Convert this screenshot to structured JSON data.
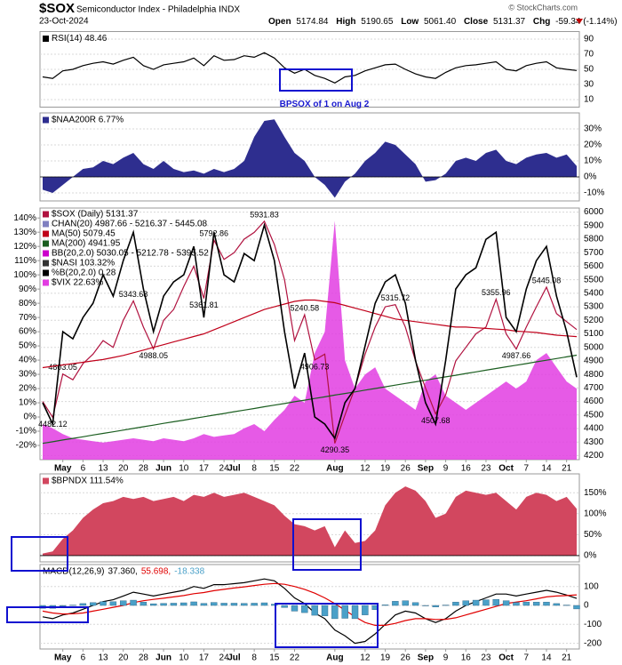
{
  "header": {
    "symbol": "$SOX",
    "name": "Semiconductor Index - Philadelphia INDX",
    "date": "23-Oct-2024",
    "ohlc": [
      {
        "label": "Open",
        "value": "5174.84"
      },
      {
        "label": "High",
        "value": "5190.65"
      },
      {
        "label": "Low",
        "value": "5061.40"
      },
      {
        "label": "Close",
        "value": "5131.37"
      },
      {
        "label": "Chg",
        "value": "-59.34 (-1.14%)"
      }
    ],
    "credit": "© StockCharts.com"
  },
  "chart_data": [
    {
      "type": "line",
      "legend": "row",
      "annotation": "BPSOX of 1 on Aug 2",
      "series": [
        {
          "name": "RSI(14) 48.46",
          "color": "#000000",
          "values": [
            40,
            38,
            48,
            50,
            55,
            58,
            60,
            57,
            62,
            66,
            55,
            50,
            56,
            58,
            60,
            65,
            55,
            68,
            62,
            63,
            68,
            66,
            72,
            65,
            52,
            45,
            50,
            42,
            38,
            32,
            40,
            42,
            48,
            52,
            56,
            57,
            50,
            44,
            40,
            38,
            46,
            52,
            55,
            56,
            58,
            60,
            50,
            48,
            55,
            58,
            60,
            52,
            50,
            48.46
          ]
        }
      ],
      "ylim": [
        0,
        100
      ],
      "yticks": [
        90,
        70,
        50,
        30,
        10
      ],
      "grid": true
    },
    {
      "type": "area",
      "legend": "row",
      "series": [
        {
          "name": "$NAA200R 6.77%",
          "color": "#2e2e8f",
          "values": [
            -8,
            -10,
            -5,
            0,
            5,
            6,
            10,
            8,
            12,
            15,
            8,
            5,
            10,
            5,
            3,
            4,
            2,
            5,
            3,
            5,
            10,
            25,
            35,
            36,
            25,
            15,
            10,
            0,
            -5,
            -13,
            -3,
            2,
            10,
            15,
            22,
            20,
            14,
            8,
            -3,
            -2,
            2,
            10,
            12,
            10,
            15,
            17,
            10,
            8,
            12,
            14,
            15,
            12,
            14,
            6.77
          ]
        }
      ],
      "ylim": [
        -15,
        40
      ],
      "yticks": [
        {
          "value": 30,
          "label": "30%"
        },
        {
          "value": 20,
          "label": "20%"
        },
        {
          "value": 10,
          "label": "10%"
        },
        {
          "value": 0,
          "label": "0%"
        },
        {
          "value": -10,
          "label": "-10%"
        }
      ],
      "grid": true
    },
    {
      "type": "line",
      "legend": "column",
      "categories": [
        null,
        null,
        "May",
        null,
        "6",
        null,
        "13",
        null,
        "20",
        null,
        "28",
        null,
        "Jun",
        null,
        "10",
        null,
        "17",
        null,
        "24",
        "Jul",
        null,
        "8",
        null,
        "15",
        null,
        "22",
        null,
        null,
        null,
        "Aug",
        null,
        null,
        "12",
        null,
        "19",
        null,
        "26",
        null,
        "Sep",
        null,
        "9",
        null,
        "16",
        null,
        "23",
        null,
        "Oct",
        null,
        "7",
        null,
        "14",
        null,
        "21",
        null
      ],
      "series": [
        {
          "name": "$SOX (Daily) 5131.37",
          "color": "#b0123f",
          "values": [
            4600,
            4482.12,
            4803.05,
            4760,
            4880,
            4950,
            5050,
            5000,
            5200,
            5343.68,
            5150,
            4988.05,
            5200,
            5280,
            5450,
            5600,
            5361.81,
            5792.86,
            5650,
            5700,
            5800,
            5850,
            5931.83,
            5760,
            5500,
            5050,
            5240.58,
            4906.73,
            4950,
            4290.35,
            4500,
            4700,
            4950,
            5150,
            5300,
            5315.72,
            5150,
            4900,
            4700,
            4507.68,
            4650,
            4900,
            5000,
            5100,
            5150,
            5355.96,
            5100,
            4987.66,
            5150,
            5300,
            5445.08,
            5250,
            5190,
            5131.37
          ],
          "value_labels": [
            null,
            "4482.12",
            "4803.05",
            null,
            null,
            null,
            null,
            null,
            null,
            "5343.68",
            null,
            "4988.05",
            null,
            null,
            null,
            null,
            "5361.81",
            "5792.86",
            null,
            null,
            null,
            null,
            "5931.83",
            null,
            null,
            null,
            "5240.58",
            "4906.73",
            null,
            "4290.35",
            null,
            null,
            null,
            null,
            null,
            "5315.72",
            null,
            null,
            null,
            "4507.68",
            null,
            null,
            null,
            null,
            null,
            "5355.96",
            null,
            "4987.66",
            null,
            null,
            "5445.08",
            null,
            null,
            null
          ]
        },
        {
          "name": "CHAN(20) 4987.66 - 5216.37 - 5445.08",
          "color": "#8080c0"
        },
        {
          "name": "MA(50) 5079.45",
          "color": "#c0001a",
          "values": [
            4850,
            4860,
            4870,
            4880,
            4890,
            4900,
            4910,
            4925,
            4940,
            4960,
            4980,
            5000,
            5020,
            5040,
            5060,
            5080,
            5100,
            5130,
            5160,
            5190,
            5220,
            5250,
            5280,
            5300,
            5320,
            5340,
            5350,
            5350,
            5340,
            5330,
            5310,
            5290,
            5270,
            5250,
            5230,
            5210,
            5200,
            5190,
            5180,
            5170,
            5160,
            5150,
            5150,
            5145,
            5140,
            5135,
            5130,
            5120,
            5115,
            5110,
            5100,
            5090,
            5085,
            5079.45
          ]
        },
        {
          "name": "MA(200) 4941.95",
          "color": "#1b5e20",
          "values": [
            4290,
            4302,
            4315,
            4327,
            4339,
            4352,
            4364,
            4376,
            4388,
            4401,
            4413,
            4425,
            4438,
            4450,
            4462,
            4475,
            4487,
            4499,
            4511,
            4524,
            4536,
            4548,
            4561,
            4573,
            4585,
            4598,
            4610,
            4622,
            4634,
            4647,
            4659,
            4671,
            4684,
            4696,
            4708,
            4721,
            4733,
            4745,
            4757,
            4770,
            4782,
            4794,
            4807,
            4819,
            4831,
            4844,
            4856,
            4868,
            4880,
            4893,
            4905,
            4917,
            4930,
            4941.95
          ]
        },
        {
          "name": "BB(20,2.0) 5030.05 - 5212.78 - 5395.52",
          "color": "#cc00cc"
        },
        {
          "name": "$NASI 103.32%",
          "color": "#333333"
        },
        {
          "name": "%B(20,2.0) 0.28",
          "color": "#000000",
          "axis": "y2",
          "values": [
            10,
            -5,
            60,
            55,
            70,
            80,
            100,
            85,
            110,
            130,
            90,
            60,
            85,
            95,
            100,
            120,
            70,
            130,
            100,
            95,
            115,
            110,
            135,
            110,
            60,
            20,
            45,
            0,
            -5,
            -15,
            10,
            20,
            50,
            80,
            95,
            100,
            80,
            40,
            10,
            -5,
            40,
            90,
            100,
            105,
            125,
            130,
            70,
            60,
            90,
            110,
            120,
            85,
            60,
            28
          ]
        },
        {
          "name": "$VIX 22.63%",
          "color": "#e23de2",
          "axis": "y2",
          "style": "area",
          "values": [
            -5,
            -8,
            -12,
            -15,
            -16,
            -17,
            -18,
            -17,
            -16,
            -15,
            -16,
            -17,
            -15,
            -16,
            -17,
            -15,
            -12,
            -14,
            -13,
            -12,
            -8,
            -5,
            -10,
            -2,
            5,
            15,
            10,
            45,
            60,
            138,
            40,
            20,
            30,
            35,
            20,
            15,
            10,
            5,
            25,
            30,
            15,
            10,
            5,
            10,
            15,
            20,
            25,
            20,
            25,
            40,
            45,
            35,
            25,
            20
          ]
        }
      ],
      "ylim": [
        4170,
        6030
      ],
      "yticks": [
        4200,
        4300,
        4400,
        4500,
        4600,
        4700,
        4800,
        4900,
        5000,
        5100,
        5200,
        5300,
        5400,
        5500,
        5600,
        5700,
        5800,
        5900,
        6000
      ],
      "y2lim": [
        -30,
        147
      ],
      "y2ticks": [
        {
          "value": 140,
          "label": "140%"
        },
        {
          "value": 130,
          "label": "130%"
        },
        {
          "value": 120,
          "label": "120%"
        },
        {
          "value": 110,
          "label": "110%"
        },
        {
          "value": 100,
          "label": "100%"
        },
        {
          "value": 90,
          "label": "90%"
        },
        {
          "value": 80,
          "label": "80%"
        },
        {
          "value": 70,
          "label": "70%"
        },
        {
          "value": 60,
          "label": "60%"
        },
        {
          "value": 50,
          "label": "50%"
        },
        {
          "value": 40,
          "label": "40%"
        },
        {
          "value": 30,
          "label": "30%"
        },
        {
          "value": 20,
          "label": "20%"
        },
        {
          "value": 10,
          "label": "10%"
        },
        {
          "value": 0,
          "label": "0%"
        },
        {
          "value": -10,
          "label": "-10%"
        },
        {
          "value": -20,
          "label": "-20%"
        }
      ],
      "grid": true
    },
    {
      "type": "area",
      "legend": "row",
      "series": [
        {
          "name": "$BPNDX 111.54%",
          "color": "#d2475f",
          "values": [
            5,
            10,
            40,
            60,
            90,
            110,
            125,
            130,
            140,
            135,
            140,
            130,
            135,
            140,
            130,
            145,
            140,
            150,
            140,
            145,
            150,
            140,
            130,
            120,
            95,
            75,
            70,
            60,
            70,
            20,
            60,
            30,
            35,
            60,
            120,
            150,
            165,
            155,
            130,
            90,
            100,
            140,
            155,
            150,
            145,
            150,
            130,
            110,
            140,
            150,
            145,
            130,
            140,
            111.54
          ]
        }
      ],
      "ylim": [
        -15,
        195
      ],
      "yticks": [
        {
          "value": 150,
          "label": "150%"
        },
        {
          "value": 100,
          "label": "100%"
        },
        {
          "value": 50,
          "label": "50%"
        },
        {
          "value": 0,
          "label": "0%"
        }
      ],
      "grid": true
    },
    {
      "type": "line",
      "legend": "row",
      "title": "MACD(12,26,9)",
      "categories": [
        null,
        null,
        "May",
        null,
        "6",
        null,
        "13",
        null,
        "20",
        null,
        "28",
        null,
        "Jun",
        null,
        "10",
        null,
        "17",
        null,
        "24",
        "Jul",
        null,
        "8",
        null,
        "15",
        null,
        "22",
        null,
        null,
        null,
        "Aug",
        null,
        null,
        "12",
        null,
        "19",
        null,
        "26",
        null,
        "Sep",
        null,
        "9",
        null,
        "16",
        null,
        "23",
        null,
        "Oct",
        null,
        "7",
        null,
        "14",
        null,
        "21",
        null
      ],
      "series": [
        {
          "name": "37.360,",
          "color": "#000000",
          "values": [
            -60,
            -70,
            -50,
            -40,
            -20,
            0,
            20,
            30,
            50,
            70,
            60,
            50,
            60,
            70,
            80,
            100,
            90,
            110,
            110,
            115,
            120,
            130,
            140,
            130,
            90,
            40,
            10,
            -40,
            -70,
            -130,
            -160,
            -200,
            -190,
            -150,
            -100,
            -50,
            -30,
            -40,
            -70,
            -90,
            -70,
            -30,
            0,
            20,
            40,
            60,
            60,
            50,
            60,
            70,
            80,
            70,
            55,
            37.36
          ]
        },
        {
          "name": "55.698,",
          "color": "#e00000",
          "values": [
            -30,
            -40,
            -45,
            -44,
            -40,
            -30,
            -20,
            -10,
            0,
            15,
            25,
            32,
            38,
            45,
            52,
            62,
            68,
            78,
            85,
            92,
            98,
            105,
            112,
            116,
            112,
            100,
            85,
            65,
            40,
            10,
            -25,
            -60,
            -90,
            -105,
            -105,
            -95,
            -80,
            -70,
            -70,
            -74,
            -73,
            -65,
            -50,
            -35,
            -20,
            -5,
            10,
            18,
            25,
            35,
            45,
            50,
            52,
            55.698
          ]
        },
        {
          "name": "-18.338",
          "color": "#4aa0c8",
          "style": "bar",
          "values": [
            -15,
            -15,
            -3,
            2,
            10,
            15,
            20,
            20,
            25,
            28,
            18,
            9,
            11,
            12,
            14,
            19,
            11,
            16,
            12,
            12,
            11,
            12,
            14,
            7,
            -11,
            -30,
            -38,
            -52,
            -55,
            -70,
            -68,
            -70,
            -50,
            -22,
            3,
            22,
            25,
            15,
            0,
            -8,
            2,
            18,
            25,
            28,
            30,
            32,
            25,
            16,
            18,
            18,
            18,
            10,
            2,
            -18.338
          ]
        }
      ],
      "ylim": [
        -230,
        216
      ],
      "yticks": [
        100,
        0,
        -100,
        -200
      ],
      "grid": true
    }
  ]
}
